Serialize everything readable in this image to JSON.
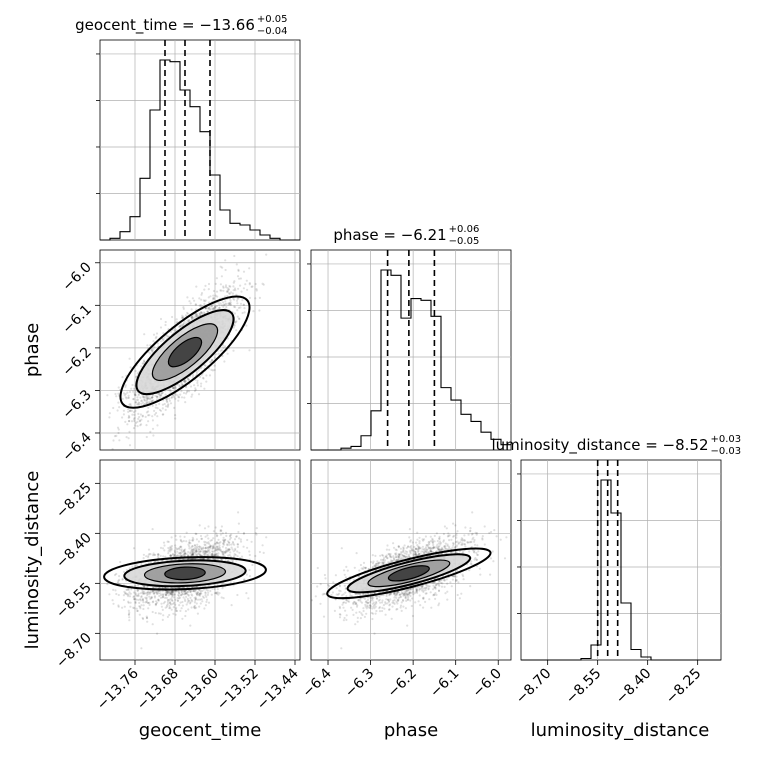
{
  "chart_data": {
    "type": "corner",
    "parameters": [
      "geocent_time",
      "phase",
      "luminosity_distance"
    ],
    "axis_labels": [
      "geocent_time",
      "phase",
      "luminosity_distance"
    ],
    "titles": [
      {
        "param": "geocent_time",
        "prefix": "geocent_time = −13.66",
        "plus": "+0.05",
        "minus": "−0.04"
      },
      {
        "param": "phase",
        "prefix": "phase = −6.21",
        "plus": "+0.06",
        "minus": "−0.05"
      },
      {
        "param": "luminosity_distance",
        "prefix": "luminosity_distance = −8.52",
        "plus": "+0.03",
        "minus": "−0.03"
      }
    ],
    "ranges": {
      "geocent_time": [
        -13.83,
        -13.43
      ],
      "phase": [
        -6.44,
        -5.97
      ],
      "luminosity_distance": [
        -8.78,
        -8.18
      ]
    },
    "ticks": {
      "geocent_time": {
        "values": [
          -13.76,
          -13.68,
          -13.6,
          -13.52,
          -13.44
        ],
        "labels": [
          "−13.76",
          "−13.68",
          "−13.60",
          "−13.52",
          "−13.44"
        ]
      },
      "phase": {
        "values": [
          -6.4,
          -6.3,
          -6.2,
          -6.1,
          -6.0
        ],
        "labels": [
          "−6.4",
          "−6.3",
          "−6.2",
          "−6.1",
          "−6.0"
        ]
      },
      "phase_y": {
        "values": [
          -6.0,
          -6.1,
          -6.2,
          -6.3,
          -6.4
        ],
        "labels": [
          "−6.0",
          "−6.1",
          "−6.2",
          "−6.3",
          "−6.4"
        ]
      },
      "luminosity_distance": {
        "values": [
          -8.7,
          -8.55,
          -8.4,
          -8.25
        ],
        "labels": [
          "−8.70",
          "−8.55",
          "−8.40",
          "−8.25"
        ]
      }
    },
    "histograms": {
      "geocent_time": {
        "edges": [
          -13.83,
          -13.81,
          -13.79,
          -13.77,
          -13.75,
          -13.73,
          -13.71,
          -13.69,
          -13.67,
          -13.65,
          -13.63,
          -13.61,
          -13.59,
          -13.57,
          -13.55,
          -13.53,
          -13.51,
          -13.49,
          -13.47,
          -13.45,
          -13.43
        ],
        "counts": [
          0,
          1,
          5,
          14,
          37,
          78,
          108,
          107,
          90,
          80,
          65,
          39,
          18,
          10,
          9,
          6,
          3,
          1,
          0,
          0
        ]
      },
      "phase": {
        "edges": [
          -6.44,
          -6.4165,
          -6.393,
          -6.3695,
          -6.346,
          -6.3225,
          -6.299,
          -6.2755,
          -6.252,
          -6.2285,
          -6.205,
          -6.1815,
          -6.158,
          -6.1345,
          -6.111,
          -6.0875,
          -6.064,
          -6.0405,
          -6.017,
          -5.9935,
          -5.97
        ],
        "counts": [
          0,
          0,
          0,
          1,
          2,
          8,
          22,
          101,
          98,
          74,
          85,
          84,
          75,
          35,
          28,
          20,
          16,
          10,
          6,
          3
        ]
      },
      "luminosity_distance": {
        "edges": [
          -8.78,
          -8.75,
          -8.72,
          -8.69,
          -8.66,
          -8.63,
          -8.6,
          -8.57,
          -8.54,
          -8.51,
          -8.48,
          -8.45,
          -8.42,
          -8.39,
          -8.36,
          -8.33,
          -8.3,
          -8.27,
          -8.24,
          -8.21,
          -8.18
        ],
        "counts": [
          0,
          0,
          0,
          0,
          0,
          0,
          1,
          10,
          120,
          98,
          38,
          7,
          2,
          0,
          0,
          0,
          0,
          0,
          0,
          0
        ]
      }
    },
    "quantiles": {
      "geocent_time": [
        -13.7,
        -13.66,
        -13.61
      ],
      "phase": [
        -6.26,
        -6.21,
        -6.15
      ],
      "luminosity_distance": [
        -8.55,
        -8.52,
        -8.49
      ]
    },
    "posterior_summary": {
      "geocent_time_phase_correlation": 0.8,
      "phase_luminosity_distance_correlation": 0.6,
      "geocent_time_luminosity_distance_correlation": 0.1
    },
    "grid": true,
    "colors": {
      "line": "#000000",
      "samples": "#000000",
      "grid": "#b0b0b0"
    }
  }
}
